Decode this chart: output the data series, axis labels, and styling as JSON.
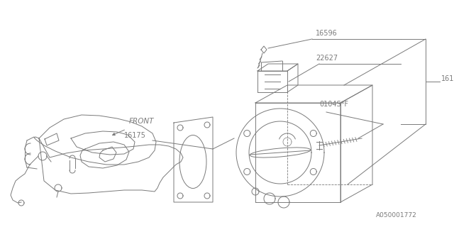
{
  "background_color": "#ffffff",
  "line_color": "#7a7a7a",
  "text_color": "#7a7a7a",
  "border_color": "#000000",
  "fig_width": 6.4,
  "fig_height": 3.2,
  "dpi": 100,
  "bottom_label": "A050001772",
  "front_label": "FRONT"
}
